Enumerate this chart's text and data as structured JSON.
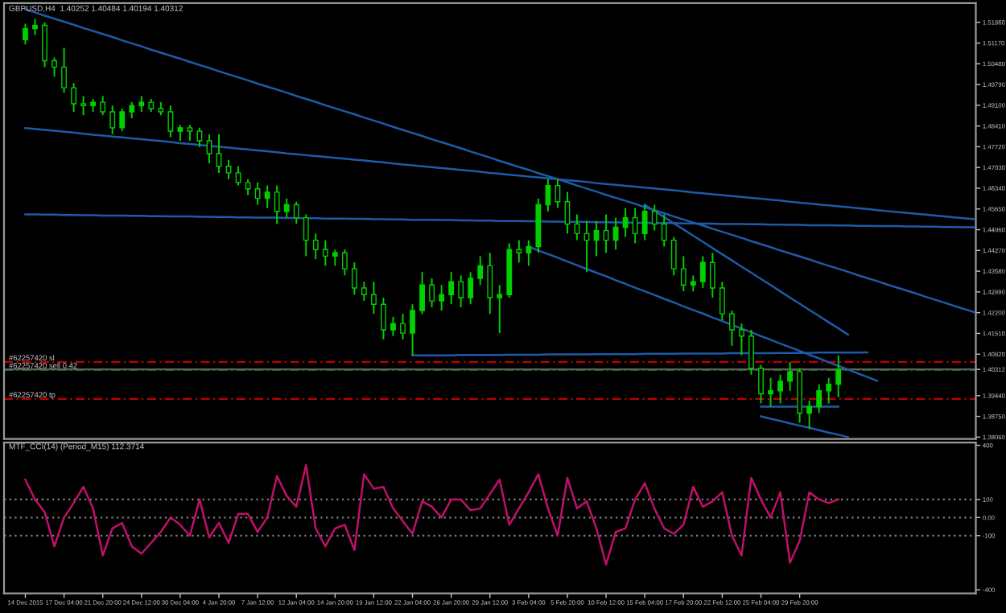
{
  "chart_data": [
    {
      "type": "candlestick",
      "title": "GBPUSD,H4  1.40252 1.40484 1.40194 1.40312",
      "color": "#00d000",
      "categories": [
        null,
        null,
        null,
        null,
        null,
        null,
        null,
        null,
        null,
        null,
        null,
        null,
        null,
        null,
        null,
        null,
        null,
        null,
        null,
        null,
        null,
        null,
        null,
        null,
        null,
        null,
        null,
        null,
        null,
        null,
        null,
        null,
        null,
        null,
        null,
        null,
        null,
        null,
        null,
        null,
        null,
        null,
        null,
        null,
        null,
        null,
        null,
        null,
        null,
        null,
        null,
        null,
        null,
        null,
        null,
        null,
        null,
        null,
        null,
        null,
        null,
        null,
        null,
        null,
        null,
        null,
        null,
        null,
        null,
        null,
        null,
        null,
        null,
        null,
        null,
        null,
        null,
        null,
        null,
        null,
        null,
        null,
        null,
        null,
        null,
        null,
        null,
        null,
        null,
        null,
        null,
        null,
        null,
        null,
        null,
        null,
        null,
        null,
        null
      ],
      "ohlc": [
        [
          1.5128,
          1.5181,
          1.5112,
          1.5165
        ],
        [
          1.5165,
          1.5197,
          1.5144,
          1.5176
        ],
        [
          1.5176,
          1.5186,
          1.5037,
          1.5058
        ],
        [
          1.5058,
          1.5069,
          1.5005,
          1.5037
        ],
        [
          1.5037,
          1.5101,
          1.4952,
          1.4968
        ],
        [
          1.4968,
          1.4984,
          1.4888,
          1.4915
        ],
        [
          1.4915,
          1.4941,
          1.4877,
          1.4909
        ],
        [
          1.4909,
          1.4931,
          1.4888,
          1.492
        ],
        [
          1.492,
          1.4941,
          1.4877,
          1.4888
        ],
        [
          1.4888,
          1.4909,
          1.4813,
          1.4835
        ],
        [
          1.4835,
          1.4899,
          1.4824,
          1.4888
        ],
        [
          1.4888,
          1.492,
          1.4867,
          1.4909
        ],
        [
          1.4909,
          1.4941,
          1.4888,
          1.492
        ],
        [
          1.492,
          1.4931,
          1.4888,
          1.4899
        ],
        [
          1.4899,
          1.492,
          1.4877,
          1.4888
        ],
        [
          1.4888,
          1.4909,
          1.4803,
          1.4824
        ],
        [
          1.4824,
          1.4845,
          1.4792,
          1.4835
        ],
        [
          1.4835,
          1.4845,
          1.4792,
          1.4824
        ],
        [
          1.4824,
          1.4835,
          1.4771,
          1.4792
        ],
        [
          1.4792,
          1.4813,
          1.4717,
          1.4749
        ],
        [
          1.4749,
          1.4813,
          1.4685,
          1.4707
        ],
        [
          1.4707,
          1.4728,
          1.4664,
          1.4685
        ],
        [
          1.4685,
          1.4707,
          1.4643,
          1.4653
        ],
        [
          1.4653,
          1.4664,
          1.4611,
          1.4632
        ],
        [
          1.4632,
          1.4653,
          1.4579,
          1.46
        ],
        [
          1.46,
          1.4643,
          1.4568,
          1.4621
        ],
        [
          1.4621,
          1.4643,
          1.4515,
          1.4557
        ],
        [
          1.4557,
          1.46,
          1.4536,
          1.4579
        ],
        [
          1.4579,
          1.4589,
          1.4515,
          1.4536
        ],
        [
          1.4536,
          1.4547,
          1.4408,
          1.4461
        ],
        [
          1.4461,
          1.4483,
          1.4398,
          1.443
        ],
        [
          1.443,
          1.4461,
          1.4376,
          1.4408
        ],
        [
          1.4408,
          1.443,
          1.4376,
          1.4419
        ],
        [
          1.4419,
          1.443,
          1.4344,
          1.4366
        ],
        [
          1.4366,
          1.4387,
          1.428,
          1.4302
        ],
        [
          1.4302,
          1.4323,
          1.4259,
          1.428
        ],
        [
          1.428,
          1.4323,
          1.4216,
          1.4248
        ],
        [
          1.4248,
          1.427,
          1.4131,
          1.4163
        ],
        [
          1.4163,
          1.4206,
          1.4142,
          1.4184
        ],
        [
          1.4184,
          1.4216,
          1.4131,
          1.4152
        ],
        [
          1.4152,
          1.4248,
          1.4078,
          1.4227
        ],
        [
          1.4227,
          1.4355,
          1.4216,
          1.4312
        ],
        [
          1.4312,
          1.4334,
          1.4238,
          1.4259
        ],
        [
          1.4259,
          1.4312,
          1.4227,
          1.428
        ],
        [
          1.428,
          1.4355,
          1.4248,
          1.4323
        ],
        [
          1.4323,
          1.4344,
          1.4238,
          1.427
        ],
        [
          1.427,
          1.4355,
          1.4248,
          1.4334
        ],
        [
          1.4334,
          1.4408,
          1.4312,
          1.4376
        ],
        [
          1.4376,
          1.4419,
          1.4216,
          1.427
        ],
        [
          1.427,
          1.4312,
          1.4152,
          1.428
        ],
        [
          1.428,
          1.4451,
          1.427,
          1.443
        ],
        [
          1.443,
          1.4461,
          1.4387,
          1.4419
        ],
        [
          1.4419,
          1.4461,
          1.4376,
          1.444
        ],
        [
          1.444,
          1.46,
          1.4419,
          1.4579
        ],
        [
          1.4579,
          1.4664,
          1.4557,
          1.4643
        ],
        [
          1.4643,
          1.4664,
          1.4568,
          1.4589
        ],
        [
          1.4589,
          1.4621,
          1.4483,
          1.4515
        ],
        [
          1.4515,
          1.4547,
          1.4461,
          1.4483
        ],
        [
          1.4483,
          1.4525,
          1.4355,
          1.4461
        ],
        [
          1.4461,
          1.4525,
          1.4408,
          1.4493
        ],
        [
          1.4493,
          1.4547,
          1.4419,
          1.4461
        ],
        [
          1.4461,
          1.4536,
          1.443,
          1.4504
        ],
        [
          1.4504,
          1.4568,
          1.4472,
          1.4536
        ],
        [
          1.4536,
          1.4568,
          1.4451,
          1.4483
        ],
        [
          1.4483,
          1.4579,
          1.4461,
          1.4557
        ],
        [
          1.4557,
          1.4579,
          1.4493,
          1.4515
        ],
        [
          1.4515,
          1.4547,
          1.444,
          1.4461
        ],
        [
          1.4461,
          1.4472,
          1.4344,
          1.4366
        ],
        [
          1.4366,
          1.4408,
          1.4291,
          1.4312
        ],
        [
          1.4312,
          1.4344,
          1.4291,
          1.4323
        ],
        [
          1.4323,
          1.4408,
          1.4302,
          1.4387
        ],
        [
          1.4387,
          1.4419,
          1.427,
          1.4302
        ],
        [
          1.4302,
          1.4323,
          1.4195,
          1.4216
        ],
        [
          1.4216,
          1.4227,
          1.411,
          1.4163
        ],
        [
          1.4163,
          1.4184,
          1.4078,
          1.4142
        ],
        [
          1.4142,
          1.4163,
          1.4014,
          1.4035
        ],
        [
          1.4035,
          1.4046,
          1.3918,
          1.395
        ],
        [
          1.395,
          1.4003,
          1.3907,
          1.396
        ],
        [
          1.396,
          1.4014,
          1.3918,
          1.3992
        ],
        [
          1.3992,
          1.4056,
          1.396,
          1.4024
        ],
        [
          1.4024,
          1.4035,
          1.3854,
          1.3886
        ],
        [
          1.3886,
          1.3928,
          1.3833,
          1.3907
        ],
        [
          1.3907,
          1.3982,
          1.3886,
          1.396
        ],
        [
          1.396,
          1.4003,
          1.3918,
          1.3982
        ],
        [
          1.3982,
          1.4078,
          1.3939,
          1.4031
        ],
        null,
        null,
        null,
        null,
        null,
        null,
        null,
        null,
        null,
        null,
        null,
        null,
        null,
        null
      ],
      "series": [
        {
          "type": "line",
          "color": "#1e5aa8",
          "values": [
            1.5229,
            1.5219,
            1.5208,
            1.5198,
            1.5188,
            1.5178,
            1.5167,
            1.5157,
            1.5147,
            1.5137,
            1.5126,
            1.5116,
            1.5106,
            1.5095,
            1.5085,
            1.5075,
            1.5065,
            1.5054,
            1.5044,
            1.5034,
            1.5023,
            1.5013,
            1.5003,
            1.4993,
            1.4982,
            1.4972,
            1.4962,
            1.4952,
            1.4941,
            1.4931,
            1.4921,
            1.491,
            1.49,
            1.489,
            1.488,
            1.4869,
            1.4859,
            1.4849,
            1.4838,
            1.4828,
            1.4818,
            1.4808,
            1.4797,
            1.4787,
            1.4777,
            1.4767,
            1.4756,
            1.4746,
            1.4736,
            1.4725,
            1.4715,
            1.4705,
            1.4695,
            1.4684,
            1.4674,
            1.4664,
            1.4654,
            1.4643,
            1.4633,
            1.4623,
            1.4612,
            1.4602,
            1.4592,
            1.4582,
            1.4571,
            1.4561,
            1.4551,
            1.454,
            1.453,
            1.452,
            1.451,
            1.4499,
            1.4489,
            1.4479,
            1.4469,
            1.4458,
            1.4448,
            1.4438,
            1.4427,
            1.4417,
            1.4407,
            1.4397,
            1.4386,
            1.4376,
            1.4366,
            1.4356,
            1.4345,
            1.4335,
            1.4325,
            1.4314,
            1.4304,
            1.4294,
            1.4284,
            1.4273,
            1.4263,
            1.4253,
            1.4242,
            1.4232,
            1.4222
          ]
        },
        {
          "type": "line",
          "color": "#1e5aa8",
          "values": [
            1.4834,
            1.4831,
            1.4828,
            1.4825,
            1.4822,
            1.4819,
            1.4815,
            1.4812,
            1.4809,
            1.4806,
            1.4803,
            1.48,
            1.4797,
            1.4794,
            1.4791,
            1.4788,
            1.4784,
            1.4781,
            1.4778,
            1.4775,
            1.4772,
            1.4769,
            1.4766,
            1.4763,
            1.476,
            1.4757,
            1.4754,
            1.475,
            1.4747,
            1.4744,
            1.4741,
            1.4738,
            1.4735,
            1.4732,
            1.4729,
            1.4726,
            1.4723,
            1.472,
            1.4716,
            1.4713,
            1.471,
            1.4707,
            1.4704,
            1.4701,
            1.4698,
            1.4695,
            1.4692,
            1.4689,
            1.4685,
            1.4682,
            1.4679,
            1.4676,
            1.4673,
            1.467,
            1.4667,
            1.4664,
            1.4661,
            1.4658,
            1.4655,
            1.4651,
            1.4648,
            1.4645,
            1.4642,
            1.4639,
            1.4636,
            1.4633,
            1.463,
            1.4627,
            1.4624,
            1.462,
            1.4617,
            1.4614,
            1.4611,
            1.4608,
            1.4605,
            1.4602,
            1.4599,
            1.4596,
            1.4593,
            1.4589,
            1.4586,
            1.4583,
            1.458,
            1.4577,
            1.4574,
            1.4571,
            1.4568,
            1.4565,
            1.4561,
            1.4558,
            1.4555,
            1.4552,
            1.4549,
            1.4546,
            1.4543,
            1.454,
            1.4537,
            1.4534,
            1.4531
          ]
        },
        {
          "type": "line",
          "color": "#1e5aa8",
          "values": [
            1.4547,
            1.4547,
            1.4546,
            1.4546,
            1.4545,
            1.4545,
            1.4544,
            1.4544,
            1.4543,
            1.4543,
            1.4543,
            1.4542,
            1.4542,
            1.4541,
            1.4541,
            1.454,
            1.454,
            1.454,
            1.4539,
            1.4539,
            1.4538,
            1.4538,
            1.4537,
            1.4537,
            1.4536,
            1.4536,
            1.4536,
            1.4535,
            1.4535,
            1.4534,
            1.4534,
            1.4533,
            1.4533,
            1.4533,
            1.4532,
            1.4532,
            1.4531,
            1.4531,
            1.453,
            1.453,
            1.4529,
            1.4529,
            1.4529,
            1.4528,
            1.4528,
            1.4527,
            1.4527,
            1.4526,
            1.4526,
            1.4525,
            1.4525,
            1.4525,
            1.4524,
            1.4524,
            1.4523,
            1.4523,
            1.4522,
            1.4522,
            1.4522,
            1.4521,
            1.4521,
            1.452,
            1.452,
            1.4519,
            1.4519,
            1.4518,
            1.4518,
            1.4518,
            1.4517,
            1.4517,
            1.4516,
            1.4516,
            1.4515,
            1.4515,
            1.4515,
            1.4514,
            1.4514,
            1.4513,
            1.4513,
            1.4512,
            1.4512,
            1.4511,
            1.4511,
            1.4511,
            1.451,
            1.451,
            1.4509,
            1.4509,
            1.4508,
            1.4508,
            1.4508,
            1.4507,
            1.4507,
            1.4506,
            1.4506,
            1.4505,
            1.4505,
            1.4504,
            1.4504
          ]
        },
        {
          "type": "line",
          "color": "#1e5aa8",
          "values": [
            null,
            null,
            null,
            null,
            null,
            null,
            null,
            null,
            null,
            null,
            null,
            null,
            null,
            null,
            null,
            null,
            null,
            null,
            null,
            null,
            null,
            null,
            null,
            null,
            null,
            null,
            null,
            null,
            null,
            null,
            null,
            null,
            null,
            null,
            null,
            null,
            null,
            null,
            null,
            null,
            null,
            null,
            null,
            null,
            null,
            null,
            null,
            null,
            null,
            null,
            null,
            null,
            null,
            null,
            null,
            null,
            null,
            null,
            null,
            null,
            null,
            null,
            null,
            null,
            1.4579,
            1.4558,
            1.4538,
            1.4517,
            1.4497,
            1.4476,
            1.4456,
            1.4435,
            1.4414,
            1.4394,
            1.4373,
            1.4353,
            1.4332,
            1.4312,
            1.4291,
            1.427,
            1.425,
            1.4229,
            1.4209,
            1.4188,
            1.4168,
            1.4147,
            null,
            null,
            null,
            null,
            null,
            null,
            null,
            null,
            null,
            null,
            null,
            null,
            null
          ]
        },
        {
          "type": "line",
          "color": "#1e5aa8",
          "values": [
            null,
            null,
            null,
            null,
            null,
            null,
            null,
            null,
            null,
            null,
            null,
            null,
            null,
            null,
            null,
            null,
            null,
            null,
            null,
            null,
            null,
            null,
            null,
            null,
            null,
            null,
            null,
            null,
            null,
            null,
            null,
            null,
            null,
            null,
            null,
            null,
            null,
            null,
            null,
            null,
            null,
            null,
            null,
            null,
            null,
            null,
            null,
            null,
            null,
            null,
            null,
            null,
            1.444,
            1.4427,
            1.4415,
            1.4403,
            1.439,
            1.4378,
            1.4365,
            1.4353,
            1.4341,
            1.4328,
            1.4316,
            1.4303,
            1.4291,
            1.4279,
            1.4266,
            1.4254,
            1.4241,
            1.4229,
            1.4217,
            1.4204,
            1.4192,
            1.4179,
            1.4167,
            1.4155,
            1.4142,
            1.413,
            1.4117,
            1.4105,
            1.4093,
            1.408,
            1.4068,
            1.4055,
            1.4043,
            1.4031,
            1.4018,
            1.4006,
            1.3993,
            null,
            null,
            null,
            null,
            null,
            null,
            null,
            null,
            null,
            null
          ]
        },
        {
          "type": "line",
          "color": "#1e5aa8",
          "values": [
            null,
            null,
            null,
            null,
            null,
            null,
            null,
            null,
            null,
            null,
            null,
            null,
            null,
            null,
            null,
            null,
            null,
            null,
            null,
            null,
            null,
            null,
            null,
            null,
            null,
            null,
            null,
            null,
            null,
            null,
            null,
            null,
            null,
            null,
            null,
            null,
            null,
            null,
            null,
            null,
            1.4078,
            1.4078,
            1.4078,
            1.4078,
            1.4078,
            1.4079,
            1.4079,
            1.4079,
            1.4079,
            1.4079,
            1.408,
            1.408,
            1.408,
            1.408,
            1.4081,
            1.4081,
            1.4081,
            1.4081,
            1.4081,
            1.4082,
            1.4082,
            1.4082,
            1.4082,
            1.4082,
            1.4083,
            1.4083,
            1.4083,
            1.4083,
            1.4084,
            1.4084,
            1.4084,
            1.4084,
            1.4084,
            1.4085,
            1.4085,
            1.4085,
            1.4085,
            1.4085,
            1.4086,
            1.4086,
            1.4086,
            1.4086,
            1.4087,
            1.4087,
            1.4087,
            1.4087,
            1.4087,
            1.4088,
            null,
            null,
            null,
            null,
            null,
            null,
            null,
            null,
            null,
            null,
            null
          ]
        },
        {
          "type": "line",
          "color": "#1e5aa8",
          "values": [
            null,
            null,
            null,
            null,
            null,
            null,
            null,
            null,
            null,
            null,
            null,
            null,
            null,
            null,
            null,
            null,
            null,
            null,
            null,
            null,
            null,
            null,
            null,
            null,
            null,
            null,
            null,
            null,
            null,
            null,
            null,
            null,
            null,
            null,
            null,
            null,
            null,
            null,
            null,
            null,
            null,
            null,
            null,
            null,
            null,
            null,
            null,
            null,
            null,
            null,
            null,
            null,
            null,
            null,
            null,
            null,
            null,
            null,
            null,
            null,
            null,
            null,
            null,
            null,
            null,
            null,
            null,
            null,
            null,
            null,
            null,
            null,
            null,
            null,
            null,
            null,
            1.3907,
            1.3907,
            1.3907,
            1.3907,
            1.3907,
            1.3907,
            1.3907,
            1.3907,
            1.3907,
            null,
            null,
            null,
            null,
            null,
            null,
            null,
            null,
            null,
            null,
            null,
            null,
            null,
            null
          ]
        },
        {
          "type": "line",
          "color": "#1e5aa8",
          "values": [
            null,
            null,
            null,
            null,
            null,
            null,
            null,
            null,
            null,
            null,
            null,
            null,
            null,
            null,
            null,
            null,
            null,
            null,
            null,
            null,
            null,
            null,
            null,
            null,
            null,
            null,
            null,
            null,
            null,
            null,
            null,
            null,
            null,
            null,
            null,
            null,
            null,
            null,
            null,
            null,
            null,
            null,
            null,
            null,
            null,
            null,
            null,
            null,
            null,
            null,
            null,
            null,
            null,
            null,
            null,
            null,
            null,
            null,
            null,
            null,
            null,
            null,
            null,
            null,
            null,
            null,
            null,
            null,
            null,
            null,
            null,
            null,
            null,
            null,
            null,
            null,
            1.3875,
            1.3867,
            1.386,
            1.3852,
            1.3844,
            1.3837,
            1.3829,
            1.3821,
            1.3814,
            1.3806,
            null,
            null,
            null,
            null,
            null,
            null,
            null,
            null,
            null,
            null,
            null,
            null,
            null
          ]
        }
      ],
      "ref_lines": [
        {
          "axis": "y",
          "value": 1.4056,
          "label": "#62257420 sl",
          "color": "#c00000",
          "line_style": "dashed"
        },
        {
          "axis": "y",
          "value": 1.403,
          "label": "#62257420 sell 0.42",
          "color": "#00a000",
          "line_style": "dashed"
        },
        {
          "axis": "y",
          "value": 1.3933,
          "label": "#62257420 tp",
          "color": "#c00000",
          "line_style": "dashed"
        },
        {
          "axis": "y",
          "value": 1.40312,
          "color": "#606060",
          "line_style": "solid"
        }
      ],
      "ylim": [
        1.38,
        1.525
      ],
      "yticks": [
        {
          "value": 1.3806,
          "label": "1.38060"
        },
        {
          "value": 1.3875,
          "label": "1.38750"
        },
        {
          "value": 1.3944,
          "label": "1.39440"
        },
        {
          "value": 1.40312,
          "label": "1.40312"
        },
        {
          "value": 1.4082,
          "label": "1.40820"
        },
        {
          "value": 1.4151,
          "label": "1.41510"
        },
        {
          "value": 1.422,
          "label": "1.42200"
        },
        {
          "value": 1.4289,
          "label": "1.42890"
        },
        {
          "value": 1.4358,
          "label": "1.43580"
        },
        {
          "value": 1.4427,
          "label": "1.44270"
        },
        {
          "value": 1.4496,
          "label": "1.44960"
        },
        {
          "value": 1.4565,
          "label": "1.45650"
        },
        {
          "value": 1.4634,
          "label": "1.46340"
        },
        {
          "value": 1.4703,
          "label": "1.47030"
        },
        {
          "value": 1.4772,
          "label": "1.47720"
        },
        {
          "value": 1.4841,
          "label": "1.48410"
        },
        {
          "value": 1.491,
          "label": "1.49100"
        },
        {
          "value": 1.4979,
          "label": "1.49790"
        },
        {
          "value": 1.5048,
          "label": "1.50480"
        },
        {
          "value": 1.5117,
          "label": "1.51170"
        },
        {
          "value": 1.5186,
          "label": "1.51860"
        }
      ],
      "tick_labels": "y",
      "grid": false,
      "legend": false
    },
    {
      "type": "line",
      "title": "MTF_CCI(14) (Period_M15) 112.3714",
      "color": "#c0106a",
      "categories": [
        "14 Dec 2015",
        null,
        null,
        null,
        "17 Dec 04:00",
        null,
        null,
        null,
        "21 Dec 20:00",
        null,
        null,
        null,
        "24 Dec 12:00",
        null,
        null,
        null,
        "30 Dec 04:00",
        null,
        null,
        null,
        "4 Jan 20:00",
        null,
        null,
        null,
        "7 Jan 12:00",
        null,
        null,
        null,
        "12 Jan 04:00",
        null,
        null,
        null,
        "14 Jan 20:00",
        null,
        null,
        null,
        "19 Jan 12:00",
        null,
        null,
        null,
        "22 Jan 04:00",
        null,
        null,
        null,
        "26 Jan 20:00",
        null,
        null,
        null,
        "29 Jan 12:00",
        null,
        null,
        null,
        "3 Feb 04:00",
        null,
        null,
        null,
        "5 Feb 20:00",
        null,
        null,
        null,
        "10 Feb 12:00",
        null,
        null,
        null,
        "15 Feb 04:00",
        null,
        null,
        null,
        "17 Feb 20:00",
        null,
        null,
        null,
        "22 Feb 12:00",
        null,
        null,
        null,
        "25 Feb 04:00",
        null,
        null,
        null,
        "29 Feb 20:00",
        null,
        null,
        null,
        null,
        null,
        null,
        null,
        null,
        null,
        null,
        null,
        null,
        null,
        null,
        null,
        null,
        null,
        null
      ],
      "values": [
        210,
        100,
        30,
        -160,
        0,
        80,
        170,
        50,
        -210,
        -60,
        -30,
        -160,
        -200,
        -140,
        -80,
        0,
        -40,
        -100,
        100,
        -110,
        -30,
        -140,
        20,
        20,
        -80,
        0,
        230,
        120,
        60,
        290,
        -60,
        -160,
        -60,
        -40,
        -180,
        240,
        160,
        170,
        50,
        -20,
        -90,
        90,
        60,
        0,
        100,
        100,
        40,
        50,
        130,
        210,
        -40,
        50,
        140,
        240,
        50,
        -100,
        220,
        50,
        90,
        -60,
        -260,
        -80,
        -60,
        100,
        190,
        50,
        -60,
        -90,
        -40,
        170,
        60,
        90,
        140,
        -100,
        -210,
        220,
        100,
        0,
        140,
        -250,
        -130,
        140,
        100,
        80,
        100,
        null,
        null,
        null,
        null,
        null,
        null,
        null,
        null,
        null,
        null,
        null,
        null,
        null,
        null
      ],
      "ref_lines": [
        {
          "axis": "y",
          "value": 100,
          "color": "#808080",
          "line_style": "dotted"
        },
        {
          "axis": "y",
          "value": 0,
          "color": "#808080",
          "line_style": "dotted"
        },
        {
          "axis": "y",
          "value": -100,
          "color": "#808080",
          "line_style": "dotted"
        }
      ],
      "ylim": [
        -420,
        415
      ],
      "yticks": [
        400,
        100,
        {
          "value": 0,
          "label": "0.00"
        },
        -100,
        -400
      ],
      "grid": false,
      "legend": false,
      "marker": "none",
      "line_style": "solid"
    }
  ]
}
